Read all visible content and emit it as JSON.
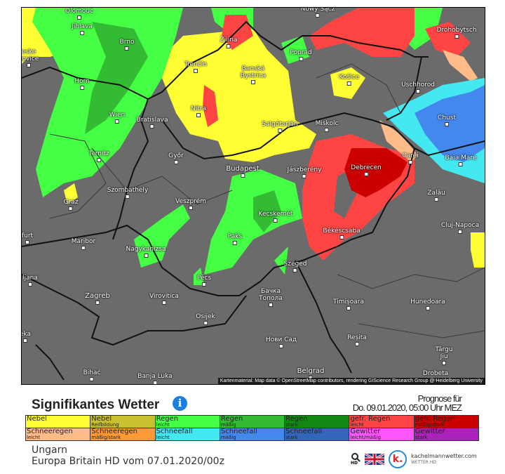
{
  "map": {
    "cities": [
      "Olomouc",
      "Nowy Sącz",
      "Jihlava",
      "Brno",
      "Drohobytsch",
      "Žilina",
      "Poprad",
      "Trenčín",
      "Banská Bystrica",
      "Košice",
      "Uschhorod",
      "Horn",
      "Nitra",
      "Wien",
      "Bratislava",
      "Chust",
      "Salgótarján",
      "Miskolc",
      "Ternitz",
      "Győr",
      "Carei",
      "Baia Mare",
      "Budapest",
      "Jászberény",
      "Debrecen",
      "Szombathely",
      "Zalău",
      "Graz",
      "Veszprém",
      "Kecskemét",
      "Cluj-Napoca",
      "Békéscsaba",
      "furt",
      "Maribor",
      "Paks",
      "Nagykanizsa",
      "Szeged",
      "ljana",
      "Pécs",
      "Zagreb",
      "Virovitica",
      "Бачка Топола",
      "Timișoara",
      "Hunedoara",
      "Osijek",
      "eka",
      "Нови Сад",
      "Reșita",
      "Târgu Jiu",
      "Drobeta",
      "Bihać",
      "Banja Luka",
      "Belgrad",
      "eske jovice"
    ],
    "attribution": "Kartenmaterial: Map data © OpenStreetMap contributors, rendering GIScience Research Group @ Heidelberg University",
    "colors": {
      "background": "#6b6b6b",
      "nebel": "#ffff33",
      "regen_leicht": "#44ff44",
      "regen_maessig": "#33bb33",
      "gefr_regen_leicht": "#ff4444",
      "gefr_regen_stark": "#cc0000",
      "schneefall_leicht": "#44e8f0",
      "schneefall_maessig": "#4488ee",
      "schneeregen_leicht": "#ffbb88"
    }
  },
  "header": {
    "title": "Signifikantes Wetter",
    "info_icon": "info-icon",
    "forecast_label": "Prognose für",
    "forecast_time": "Do. 09.01.2020, 05:00 Uhr MEZ"
  },
  "legend": [
    [
      {
        "label": "Nebel",
        "sub": "",
        "color": "#ffff33"
      },
      {
        "label": "Nebel",
        "sub": "Reifbildung",
        "color": "#c8c030"
      },
      {
        "label": "Regen",
        "sub": "leicht",
        "color": "#44ff44"
      },
      {
        "label": "Regen",
        "sub": "mäßig",
        "color": "#33bb33"
      },
      {
        "label": "Regen",
        "sub": "stark",
        "color": "#118811"
      },
      {
        "label": "gefr. Regen",
        "sub": "leicht",
        "color": "#ff4444"
      },
      {
        "label": "gefr. Regen",
        "sub": "mäßig/stark",
        "color": "#cc0000"
      }
    ],
    [
      {
        "label": "Schneeregen",
        "sub": "leicht",
        "color": "#ffbb88"
      },
      {
        "label": "Schneeregen",
        "sub": "mäßig/stark",
        "color": "#ff9933"
      },
      {
        "label": "Schneefall",
        "sub": "leicht",
        "color": "#44e8f0"
      },
      {
        "label": "Schneefall",
        "sub": "mäßig",
        "color": "#4488ee"
      },
      {
        "label": "Schneefall",
        "sub": "stark",
        "color": "#3366bb"
      },
      {
        "label": "Gewitter",
        "sub": "leicht/mäßig",
        "color": "#ff55ff"
      },
      {
        "label": "Gewitter",
        "sub": "stark",
        "color": "#aa22bb"
      }
    ]
  ],
  "footer": {
    "region": "Ungarn",
    "model": "Europa Britain HD vom 07.01.2020/00z",
    "hd_label": "HD",
    "brand": "kachelmannwetter.com",
    "brand_sub": "WETTER HD",
    "logo_letter": "k."
  }
}
